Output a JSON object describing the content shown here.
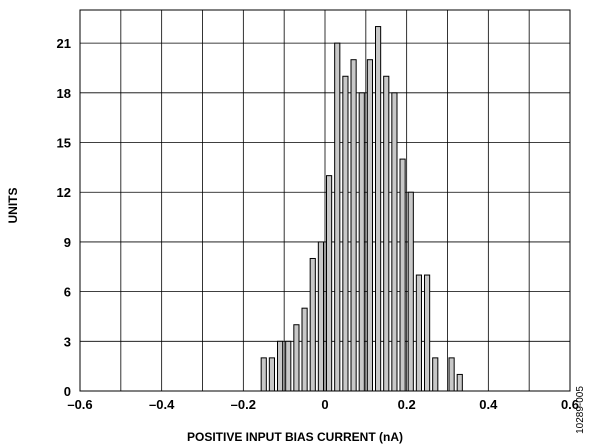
{
  "chart_data": {
    "type": "bar",
    "title": "",
    "xlabel": "POSITIVE INPUT BIAS CURRENT (nA)",
    "ylabel": "UNITS",
    "xlim": [
      -0.6,
      0.6
    ],
    "ylim": [
      0,
      23
    ],
    "x_ticks": [
      -0.6,
      -0.4,
      -0.2,
      0,
      0.2,
      0.4,
      0.6
    ],
    "x_tick_labels": [
      "–0.6",
      "–0.4",
      "–0.2",
      "0",
      "0.2",
      "0.4",
      "0.6"
    ],
    "y_ticks": [
      0,
      3,
      6,
      9,
      12,
      15,
      18,
      21
    ],
    "y_tick_labels": [
      "0",
      "3",
      "6",
      "9",
      "12",
      "15",
      "18",
      "21"
    ],
    "grid": true,
    "bin_width": 0.02,
    "bins": [
      {
        "x": -0.16,
        "value": 2
      },
      {
        "x": -0.14,
        "value": 2
      },
      {
        "x": -0.12,
        "value": 3
      },
      {
        "x": -0.1,
        "value": 3
      },
      {
        "x": -0.08,
        "value": 4
      },
      {
        "x": -0.06,
        "value": 5
      },
      {
        "x": -0.04,
        "value": 8
      },
      {
        "x": -0.02,
        "value": 9
      },
      {
        "x": 0.0,
        "value": 13
      },
      {
        "x": 0.02,
        "value": 21
      },
      {
        "x": 0.04,
        "value": 19
      },
      {
        "x": 0.06,
        "value": 20
      },
      {
        "x": 0.08,
        "value": 18
      },
      {
        "x": 0.1,
        "value": 20
      },
      {
        "x": 0.12,
        "value": 22
      },
      {
        "x": 0.14,
        "value": 19
      },
      {
        "x": 0.16,
        "value": 18
      },
      {
        "x": 0.18,
        "value": 14
      },
      {
        "x": 0.2,
        "value": 12
      },
      {
        "x": 0.22,
        "value": 7
      },
      {
        "x": 0.24,
        "value": 7
      },
      {
        "x": 0.26,
        "value": 2
      },
      {
        "x": 0.3,
        "value": 2
      },
      {
        "x": 0.32,
        "value": 1
      }
    ],
    "bar_color": "#c8c8c8",
    "edge_color": "#000000"
  },
  "figure_id": "10289-005"
}
